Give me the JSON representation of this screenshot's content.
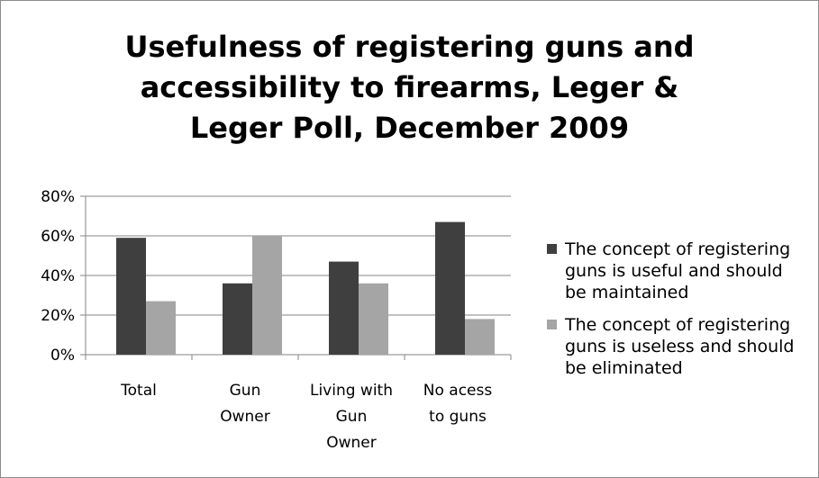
{
  "title_lines": [
    "Usefulness of registering guns and",
    "accessibility to firearms, Leger &",
    "Leger Poll, December 2009"
  ],
  "chart_data": {
    "type": "bar",
    "title": "Usefulness of registering guns and accessibility to firearms, Leger & Leger Poll, December 2009",
    "categories": [
      [
        "Total"
      ],
      [
        "Gun",
        "Owner"
      ],
      [
        "Living with",
        "Gun",
        "Owner"
      ],
      [
        "No acess",
        "to guns"
      ]
    ],
    "series": [
      {
        "name": "The concept of registering guns is useful and should be maintained",
        "legend_lines": [
          "The concept of registering",
          "guns is useful and should",
          "be maintained"
        ],
        "color": "#3f3f3f",
        "values": [
          59,
          36,
          47,
          67
        ]
      },
      {
        "name": "The concept of registering guns is useless and should be eliminated",
        "legend_lines": [
          "The concept of registering",
          "guns is useless and should",
          "be eliminated"
        ],
        "color": "#a5a5a5",
        "values": [
          27,
          60,
          36,
          18
        ]
      }
    ],
    "ylim": [
      0,
      80
    ],
    "yticks": [
      "0%",
      "20%",
      "40%",
      "60%",
      "80%"
    ],
    "ytick_values": [
      0,
      20,
      40,
      60,
      80
    ],
    "grid": true,
    "legend_position": "right",
    "xlabel": "",
    "ylabel": ""
  }
}
